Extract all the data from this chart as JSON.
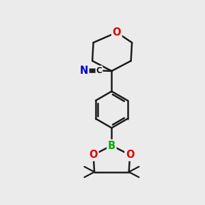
{
  "bg_color": "#ebebeb",
  "bond_color": "#1a1a1a",
  "atom_colors": {
    "O": "#e00000",
    "N": "#0000cc",
    "B": "#00aa00",
    "C": "#1a1a1a"
  },
  "bond_width": 1.8,
  "figsize": [
    3.0,
    3.0
  ],
  "dpi": 100
}
